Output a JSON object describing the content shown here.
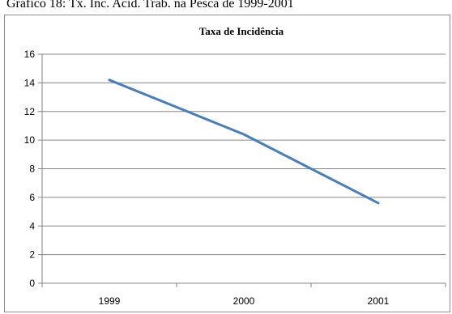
{
  "caption": "Gráfico 18: Tx. Inc. Acid. Trab. na Pesca de 1999-2001",
  "chart_data": {
    "type": "line",
    "title": "Taxa de Incidência",
    "xlabel": "",
    "ylabel": "",
    "categories": [
      "1999",
      "2000",
      "2001"
    ],
    "series": [
      {
        "values": [
          14.2,
          10.4,
          5.6
        ],
        "color": "#4a7ebb"
      }
    ],
    "ylim": [
      0,
      16
    ],
    "yticks": [
      0,
      2,
      4,
      6,
      8,
      10,
      12,
      14,
      16
    ],
    "ytick_labels": [
      "0",
      "2",
      "4",
      "6",
      "8",
      "10",
      "12",
      "14",
      "16"
    ],
    "grid": true,
    "legend": "none"
  }
}
